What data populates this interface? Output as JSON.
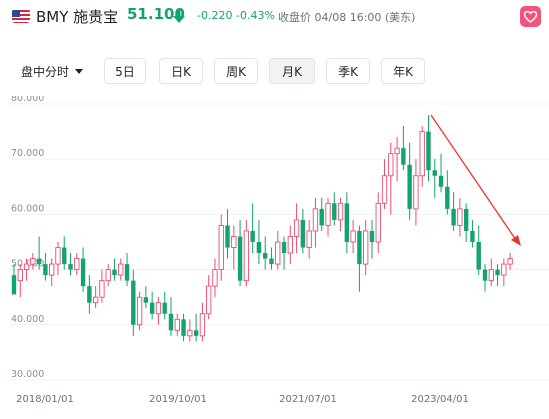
{
  "header": {
    "flag_icon": "us-flag-icon",
    "ticker": "BMY 施贵宝",
    "price": "51.100",
    "price_direction_icon": "arrow-down-icon",
    "change": "-0.220",
    "change_pct": "-0.43%",
    "close_info": "收盘价 04/08 16:00 (美东)",
    "favorite_icon": "heart-icon",
    "colors": {
      "down": "#13a36c",
      "up": "#ec4d6e",
      "favorite": "#f2557b",
      "annotation": "#e8382f"
    }
  },
  "tabs": [
    {
      "label": "盘中分时",
      "dropdown": true,
      "active": false
    },
    {
      "label": "5日",
      "active": false
    },
    {
      "label": "日K",
      "active": false
    },
    {
      "label": "周K",
      "active": false
    },
    {
      "label": "月K",
      "active": true
    },
    {
      "label": "季K",
      "active": false
    },
    {
      "label": "年K",
      "active": false
    }
  ],
  "chart_data": {
    "type": "candlestick",
    "period": "monthly",
    "y_ticks": [
      "80.000",
      "70.000",
      "60.000",
      "50.000",
      "40.000",
      "30.000"
    ],
    "ylim": [
      30,
      80
    ],
    "x_ticks": [
      "2018/01/01",
      "2019/10/01",
      "2021/07/01",
      "2023/04/01"
    ],
    "grid": true,
    "candles": [
      [
        49,
        51,
        46,
        45.5
      ],
      [
        48,
        51,
        45,
        50
      ],
      [
        50,
        52,
        48,
        51
      ],
      [
        51,
        53,
        50,
        52
      ],
      [
        52,
        56,
        50,
        51
      ],
      [
        51,
        53,
        48,
        49
      ],
      [
        49,
        52,
        47,
        51
      ],
      [
        51,
        55,
        49,
        54
      ],
      [
        54,
        56,
        50,
        51
      ],
      [
        51,
        53,
        49,
        50
      ],
      [
        50,
        53,
        49,
        52
      ],
      [
        52,
        54,
        46,
        47
      ],
      [
        47,
        49,
        42,
        44
      ],
      [
        44,
        47,
        43,
        45
      ],
      [
        45,
        50,
        44,
        48
      ],
      [
        48,
        51,
        47,
        50
      ],
      [
        50,
        52,
        48,
        49
      ],
      [
        49,
        52,
        48,
        51
      ],
      [
        51,
        53,
        47,
        48
      ],
      [
        48,
        50,
        38,
        40
      ],
      [
        40,
        46,
        39,
        45
      ],
      [
        45,
        47,
        43,
        44
      ],
      [
        44,
        46,
        41,
        42
      ],
      [
        42,
        45,
        40,
        44
      ],
      [
        44,
        46,
        41,
        42
      ],
      [
        42,
        45,
        38,
        39
      ],
      [
        39,
        42,
        38,
        41
      ],
      [
        41,
        42,
        37,
        38
      ],
      [
        38,
        41,
        37,
        39
      ],
      [
        39,
        42,
        37,
        38
      ],
      [
        38,
        44,
        37,
        42
      ],
      [
        42,
        49,
        41,
        47
      ],
      [
        47,
        52,
        45,
        50
      ],
      [
        50,
        60,
        48,
        58
      ],
      [
        58,
        61,
        52,
        54
      ],
      [
        54,
        58,
        50,
        56
      ],
      [
        56,
        59,
        47,
        48
      ],
      [
        48,
        59,
        47,
        57
      ],
      [
        57,
        62,
        53,
        55
      ],
      [
        55,
        59,
        51,
        53
      ],
      [
        53,
        56,
        50,
        52
      ],
      [
        52,
        54,
        50,
        51
      ],
      [
        51,
        57,
        50,
        55
      ],
      [
        55,
        56,
        50,
        53
      ],
      [
        53,
        58,
        51,
        56
      ],
      [
        56,
        62,
        53,
        59
      ],
      [
        59,
        61,
        53,
        54
      ],
      [
        54,
        59,
        52,
        57
      ],
      [
        57,
        63,
        54,
        61
      ],
      [
        61,
        63,
        57,
        58
      ],
      [
        58,
        63,
        56,
        62
      ],
      [
        62,
        64,
        58,
        59
      ],
      [
        59,
        63,
        57,
        62
      ],
      [
        62,
        64,
        53,
        55
      ],
      [
        55,
        59,
        53,
        57
      ],
      [
        57,
        58,
        46,
        51
      ],
      [
        51,
        59,
        49,
        57
      ],
      [
        57,
        59,
        52,
        55
      ],
      [
        55,
        64,
        53,
        62
      ],
      [
        62,
        70,
        61,
        67
      ],
      [
        67,
        73,
        60,
        71
      ],
      [
        71,
        74,
        66,
        72
      ],
      [
        72,
        76,
        68,
        69
      ],
      [
        69,
        73,
        59,
        61
      ],
      [
        61,
        70,
        58,
        67
      ],
      [
        67,
        76,
        65,
        75
      ],
      [
        75,
        78,
        66,
        68
      ],
      [
        68,
        70,
        63,
        67
      ],
      [
        67,
        71,
        64,
        65
      ],
      [
        65,
        68,
        60,
        61
      ],
      [
        61,
        64,
        57,
        58
      ],
      [
        58,
        63,
        56,
        61
      ],
      [
        61,
        62,
        55,
        57
      ],
      [
        57,
        59,
        54,
        55
      ],
      [
        55,
        58,
        49,
        50
      ],
      [
        50,
        51,
        46,
        48
      ],
      [
        48,
        52,
        47,
        50
      ],
      [
        50,
        51,
        47,
        49
      ],
      [
        49,
        52,
        47,
        51
      ],
      [
        51,
        53,
        50,
        52
      ]
    ]
  },
  "annotation_arrow": "red-trend-arrow"
}
